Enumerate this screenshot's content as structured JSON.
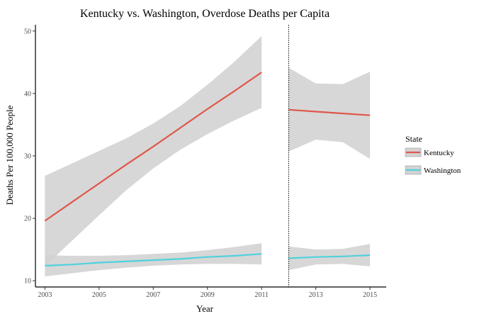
{
  "chart_data": {
    "type": "line",
    "title": "Kentucky vs. Washington, Overdose Deaths per Capita",
    "xlabel": "Year",
    "ylabel": "Deaths Per 100,000 People",
    "xlim": [
      2002.65,
      2015.6
    ],
    "ylim": [
      9,
      51
    ],
    "x_ticks": [
      2003,
      2005,
      2007,
      2009,
      2011,
      2013,
      2015
    ],
    "y_ticks": [
      10,
      20,
      30,
      40,
      50
    ],
    "grid": false,
    "legend": {
      "title": "State",
      "placement": "right"
    },
    "vline": {
      "x": 2012,
      "style": "dotted"
    },
    "series": [
      {
        "name": "Kentucky",
        "color": "#E0574B",
        "segments": [
          {
            "x": [
              2003,
              2004,
              2005,
              2006,
              2007,
              2008,
              2009,
              2010,
              2011
            ],
            "y": [
              19.6,
              22.6,
              25.6,
              28.6,
              31.5,
              34.5,
              37.5,
              40.4,
              43.4
            ],
            "lower": [
              12.3,
              16.4,
              20.5,
              24.5,
              28.0,
              31.0,
              33.5,
              35.7,
              37.7
            ],
            "upper": [
              26.8,
              28.8,
              30.8,
              32.8,
              35.2,
              38.0,
              41.4,
              45.1,
              49.2
            ]
          },
          {
            "x": [
              2012,
              2013,
              2014,
              2015
            ],
            "y": [
              37.4,
              37.1,
              36.8,
              36.5
            ],
            "lower": [
              30.7,
              32.6,
              32.2,
              29.5
            ],
            "upper": [
              44.1,
              41.6,
              41.5,
              43.5
            ]
          }
        ]
      },
      {
        "name": "Washington",
        "color": "#4FD2DC",
        "segments": [
          {
            "x": [
              2003,
              2004,
              2005,
              2006,
              2007,
              2008,
              2009,
              2010,
              2011
            ],
            "y": [
              12.4,
              12.6,
              12.9,
              13.1,
              13.3,
              13.5,
              13.8,
              14.0,
              14.3
            ],
            "lower": [
              10.7,
              11.2,
              11.7,
              12.1,
              12.4,
              12.6,
              12.7,
              12.7,
              12.6
            ],
            "upper": [
              14.1,
              14.0,
              14.0,
              14.1,
              14.3,
              14.5,
              14.9,
              15.4,
              16.0
            ]
          },
          {
            "x": [
              2012,
              2013,
              2014,
              2015
            ],
            "y": [
              13.6,
              13.8,
              13.9,
              14.1
            ],
            "lower": [
              11.7,
              12.6,
              12.7,
              12.3
            ],
            "upper": [
              15.5,
              15.0,
              15.1,
              15.9
            ]
          }
        ]
      }
    ],
    "ribbon_color": "#D3D3D3"
  }
}
